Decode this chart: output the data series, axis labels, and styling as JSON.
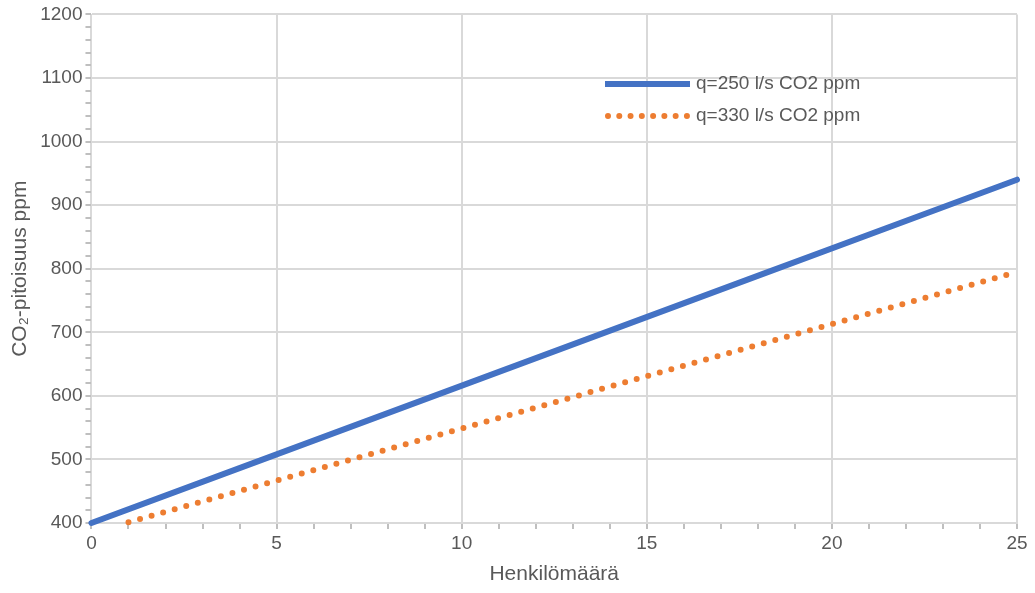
{
  "chart_data": {
    "type": "line",
    "xlabel": "Henkilömäärä",
    "ylabel": "CO₂-pitoisuus ppm",
    "xlim": [
      0,
      25
    ],
    "ylim": [
      400,
      1200
    ],
    "xticks": [
      0,
      {
        "value": 1,
        "label": null
      },
      {
        "value": 2,
        "label": null
      },
      {
        "value": 3,
        "label": null
      },
      {
        "value": 4,
        "label": null
      },
      5,
      {
        "value": 6,
        "label": null
      },
      {
        "value": 7,
        "label": null
      },
      {
        "value": 8,
        "label": null
      },
      {
        "value": 9,
        "label": null
      },
      10,
      {
        "value": 11,
        "label": null
      },
      {
        "value": 12,
        "label": null
      },
      {
        "value": 13,
        "label": null
      },
      {
        "value": 14,
        "label": null
      },
      15,
      {
        "value": 16,
        "label": null
      },
      {
        "value": 17,
        "label": null
      },
      {
        "value": 18,
        "label": null
      },
      {
        "value": 19,
        "label": null
      },
      20,
      {
        "value": 21,
        "label": null
      },
      {
        "value": 22,
        "label": null
      },
      {
        "value": 23,
        "label": null
      },
      {
        "value": 24,
        "label": null
      },
      25
    ],
    "yticks": [
      400,
      {
        "value": 420,
        "label": null
      },
      {
        "value": 440,
        "label": null
      },
      {
        "value": 460,
        "label": null
      },
      {
        "value": 480,
        "label": null
      },
      500,
      {
        "value": 520,
        "label": null
      },
      {
        "value": 540,
        "label": null
      },
      {
        "value": 560,
        "label": null
      },
      {
        "value": 580,
        "label": null
      },
      600,
      {
        "value": 620,
        "label": null
      },
      {
        "value": 640,
        "label": null
      },
      {
        "value": 660,
        "label": null
      },
      {
        "value": 680,
        "label": null
      },
      700,
      {
        "value": 720,
        "label": null
      },
      {
        "value": 740,
        "label": null
      },
      {
        "value": 760,
        "label": null
      },
      {
        "value": 780,
        "label": null
      },
      800,
      {
        "value": 820,
        "label": null
      },
      {
        "value": 840,
        "label": null
      },
      {
        "value": 860,
        "label": null
      },
      {
        "value": 880,
        "label": null
      },
      900,
      {
        "value": 920,
        "label": null
      },
      {
        "value": 940,
        "label": null
      },
      {
        "value": 960,
        "label": null
      },
      {
        "value": 980,
        "label": null
      },
      1000,
      {
        "value": 1020,
        "label": null
      },
      {
        "value": 1040,
        "label": null
      },
      {
        "value": 1060,
        "label": null
      },
      {
        "value": 1080,
        "label": null
      },
      1100,
      {
        "value": 1120,
        "label": null
      },
      {
        "value": 1140,
        "label": null
      },
      {
        "value": 1160,
        "label": null
      },
      {
        "value": 1180,
        "label": null
      },
      1200
    ],
    "grid": true,
    "legend": "top right",
    "marker": "none",
    "series": [
      {
        "name": "q=250 l/s CO2 ppm",
        "color": "#4472c4",
        "line_style": "solid",
        "x": [
          0,
          25
        ],
        "values": [
          400,
          940
        ]
      },
      {
        "name": "q=330 l/s CO2 ppm",
        "color": "#ed7d31",
        "line_style": "dotted",
        "x": [
          1,
          25
        ],
        "values": [
          401,
          795
        ]
      }
    ]
  }
}
